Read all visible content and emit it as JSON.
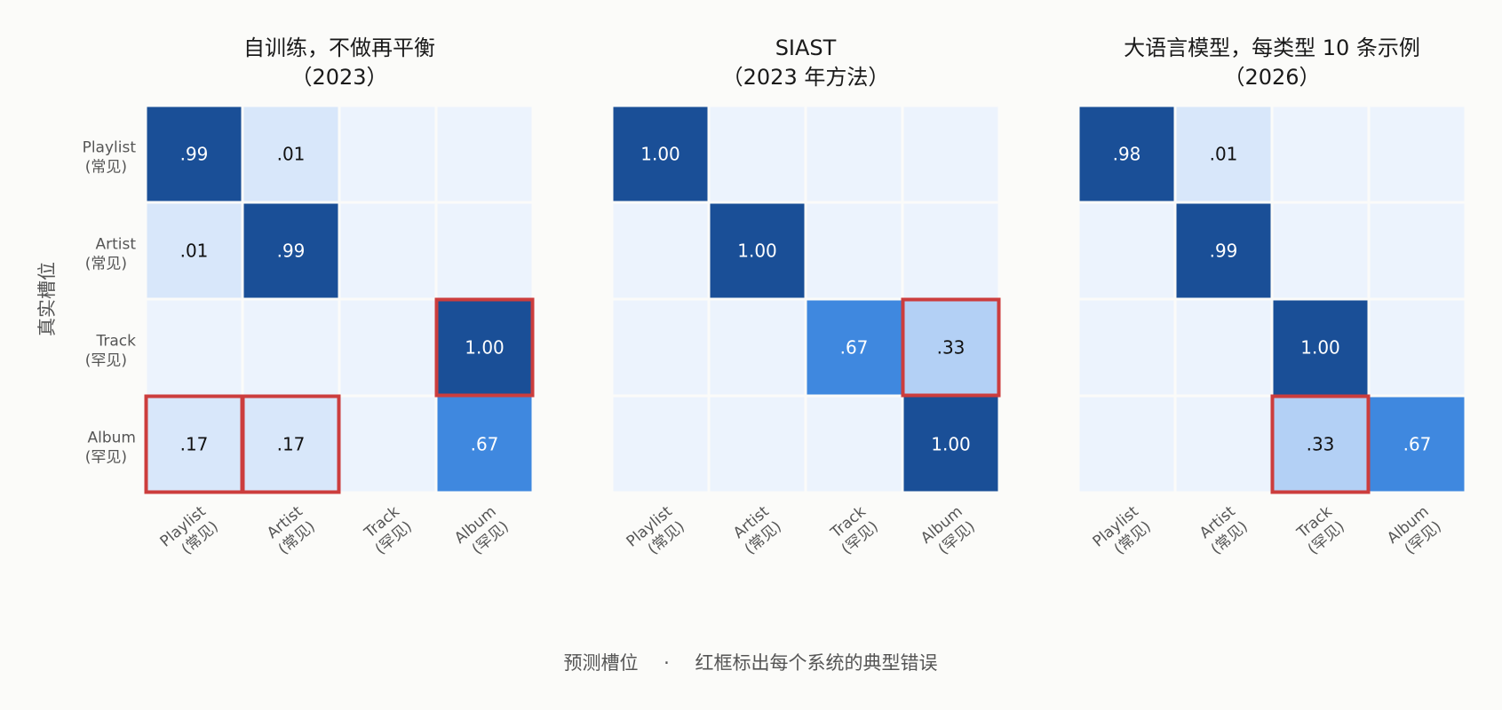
{
  "chart_data": [
    {
      "type": "heatmap",
      "title": [
        "自训练，不做再平衡",
        "（2023）"
      ],
      "ylabel": "真实槽位",
      "xlabel": "预测槽位",
      "rows": [
        [
          "Playlist",
          "(常见)"
        ],
        [
          "Artist",
          "(常见)"
        ],
        [
          "Track",
          "(罕见)"
        ],
        [
          "Album",
          "(罕见)"
        ]
      ],
      "cols": [
        [
          "Playlist",
          "(常见)"
        ],
        [
          "Artist",
          "(常见)"
        ],
        [
          "Track",
          "(罕见)"
        ],
        [
          "Album",
          "(罕见)"
        ]
      ],
      "values": [
        [
          0.99,
          0.01,
          0.0,
          0.0
        ],
        [
          0.01,
          0.99,
          0.0,
          0.0
        ],
        [
          0.0,
          0.0,
          0.0,
          1.0
        ],
        [
          0.17,
          0.17,
          0.0,
          0.67
        ]
      ],
      "labels": [
        [
          ".99",
          ".01",
          "",
          ""
        ],
        [
          ".01",
          ".99",
          "",
          ""
        ],
        [
          "",
          "",
          "",
          "1.00"
        ],
        [
          ".17",
          ".17",
          "",
          ".67"
        ]
      ],
      "highlighted": [
        [
          2,
          3
        ],
        [
          3,
          0
        ],
        [
          3,
          1
        ]
      ]
    },
    {
      "type": "heatmap",
      "title": [
        "SIAST",
        "（2023 年方法）"
      ],
      "rows": [
        [
          "Playlist",
          "(常见)"
        ],
        [
          "Artist",
          "(常见)"
        ],
        [
          "Track",
          "(罕见)"
        ],
        [
          "Album",
          "(罕见)"
        ]
      ],
      "cols": [
        [
          "Playlist",
          "(常见)"
        ],
        [
          "Artist",
          "(常见)"
        ],
        [
          "Track",
          "(罕见)"
        ],
        [
          "Album",
          "(罕见)"
        ]
      ],
      "values": [
        [
          1.0,
          0.0,
          0.0,
          0.0
        ],
        [
          0.0,
          1.0,
          0.0,
          0.0
        ],
        [
          0.0,
          0.0,
          0.67,
          0.33
        ],
        [
          0.0,
          0.0,
          0.0,
          1.0
        ]
      ],
      "labels": [
        [
          "1.00",
          "",
          "",
          ""
        ],
        [
          "",
          "1.00",
          "",
          ""
        ],
        [
          "",
          "",
          ".67",
          ".33"
        ],
        [
          "",
          "",
          "",
          "1.00"
        ]
      ],
      "highlighted": [
        [
          2,
          3
        ]
      ]
    },
    {
      "type": "heatmap",
      "title": [
        "大语言模型，每类型 10 条示例",
        "（2026）"
      ],
      "rows": [
        [
          "Playlist",
          "(常见)"
        ],
        [
          "Artist",
          "(常见)"
        ],
        [
          "Track",
          "(罕见)"
        ],
        [
          "Album",
          "(罕见)"
        ]
      ],
      "cols": [
        [
          "Playlist",
          "(常见)"
        ],
        [
          "Artist",
          "(常见)"
        ],
        [
          "Track",
          "(罕见)"
        ],
        [
          "Album",
          "(罕见)"
        ]
      ],
      "values": [
        [
          0.98,
          0.01,
          0.0,
          0.0
        ],
        [
          0.0,
          0.99,
          0.0,
          0.0
        ],
        [
          0.0,
          0.0,
          1.0,
          0.0
        ],
        [
          0.0,
          0.0,
          0.33,
          0.67
        ]
      ],
      "labels": [
        [
          ".98",
          ".01",
          "",
          ""
        ],
        [
          "",
          ".99",
          "",
          ""
        ],
        [
          "",
          "",
          "1.00",
          ""
        ],
        [
          "",
          "",
          ".33",
          ".67"
        ]
      ],
      "highlighted": [
        [
          3,
          2
        ]
      ]
    }
  ],
  "footer": {
    "xlabel": "预测槽位",
    "separator": "·",
    "note": "红框标出每个系统的典型错误"
  },
  "colors": {
    "background": "#fbfbf9",
    "empty_cell": "#ecf3fd",
    "low_cell": "#d8e7fa",
    "light_cell": "#b3d0f5",
    "mid_cell": "#3f88df",
    "high_cell": "#1a4f97",
    "highlight_border": "#cc3d3d",
    "dark_text": "#111111",
    "light_text": "#ffffff"
  }
}
